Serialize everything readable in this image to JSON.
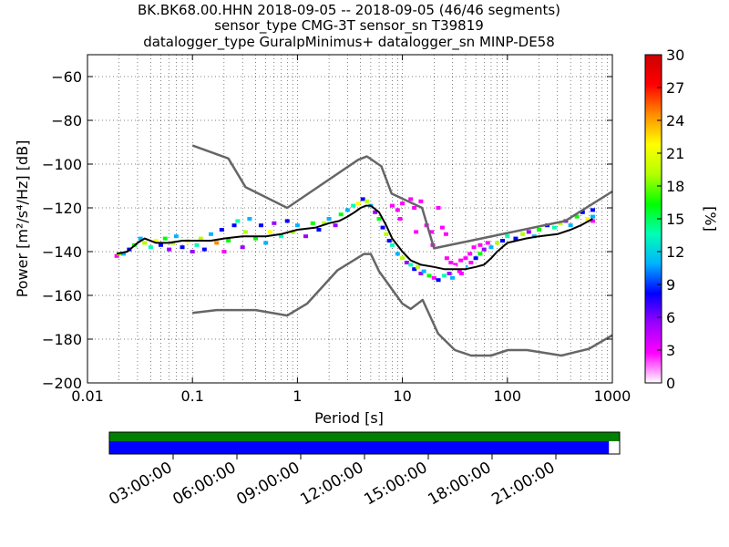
{
  "title_lines": [
    "BK.BK68.00.HHN   2018-09-05 -- 2018-09-05  (46/46 segments)",
    "sensor_type CMG-3T sensor_sn T39819",
    "datalogger_type GuralpMinimus+ datalogger_sn MINP-DE58"
  ],
  "chart_data": {
    "type": "heatmap",
    "subtype": "probabilistic power spectral density",
    "title": "BK.BK68.00.HHN   2018-09-05 -- 2018-09-05  (46/46 segments)",
    "xlabel": "Period [s]",
    "ylabel": "Power [m²/s⁴/Hz] [dB]",
    "x_scale": "log",
    "xlim": [
      0.01,
      1000
    ],
    "ylim": [
      -200,
      -50
    ],
    "x_ticks": [
      0.01,
      0.1,
      1,
      10,
      100,
      1000
    ],
    "x_tick_labels": [
      "0.01",
      "0.1",
      "1",
      "10",
      "100",
      "1000"
    ],
    "y_ticks": [
      -60,
      -80,
      -100,
      -120,
      -140,
      -160,
      -180,
      -200
    ],
    "y_tick_labels": [
      "−60",
      "−80",
      "−100",
      "−120",
      "−140",
      "−160",
      "−180",
      "−200"
    ],
    "grid": true,
    "colorbar": {
      "label": "[%]",
      "range": [
        0,
        30
      ],
      "ticks": [
        0,
        3,
        6,
        9,
        12,
        15,
        18,
        21,
        24,
        27,
        30
      ],
      "colors": [
        "#ffffff",
        "#ff00ff",
        "#9b00ff",
        "#0000ff",
        "#00b4ff",
        "#00ffb4",
        "#00ff00",
        "#b4ff00",
        "#ffff00",
        "#ff8c00",
        "#ff0000",
        "#cc0000"
      ]
    },
    "mean_curve": {
      "x": [
        0.019,
        0.024,
        0.03,
        0.035,
        0.045,
        0.06,
        0.08,
        0.1,
        0.15,
        0.2,
        0.3,
        0.5,
        0.7,
        1.0,
        1.5,
        2.0,
        2.5,
        3.0,
        3.5,
        4.0,
        4.5,
        5.0,
        6.0,
        7.0,
        8.0,
        10,
        12,
        15,
        20,
        25,
        30,
        40,
        50,
        60,
        70,
        80,
        100,
        150,
        200,
        300,
        400,
        500,
        650
      ],
      "y": [
        -141,
        -140,
        -136,
        -134,
        -136,
        -136,
        -135,
        -135,
        -135,
        -134,
        -133,
        -133,
        -132,
        -130,
        -129,
        -127,
        -126,
        -124,
        -122,
        -120,
        -119,
        -119,
        -122,
        -128,
        -134,
        -140,
        -144,
        -146,
        -147,
        -148,
        -148,
        -148,
        -147,
        -146,
        -143,
        -140,
        -136,
        -134,
        -133,
        -132,
        -130,
        -128,
        -125
      ]
    },
    "noise_model_high": {
      "name": "",
      "x": [
        0.1,
        0.22,
        0.32,
        0.8,
        3.8,
        4.6,
        6.3,
        7.9,
        15.4,
        20,
        354.8,
        1000
      ],
      "y": [
        -91.5,
        -97.4,
        -110.5,
        -120,
        -98,
        -96.5,
        -101,
        -113.5,
        -120,
        -138.5,
        -126,
        -112.5
      ]
    },
    "noise_model_low": {
      "name": "",
      "x": [
        0.1,
        0.17,
        0.4,
        0.8,
        1.24,
        2.4,
        4.3,
        5.0,
        6.0,
        10.0,
        12.0,
        15.6,
        21.9,
        31.6,
        45,
        70,
        101,
        154,
        328,
        600,
        1000
      ],
      "y": [
        -168,
        -166.7,
        -166.7,
        -169.2,
        -163.7,
        -148.6,
        -141.1,
        -141.1,
        -149,
        -163.8,
        -166.2,
        -162.1,
        -177.5,
        -185,
        -187.5,
        -187.5,
        -185,
        -185,
        -187.5,
        -184.4,
        -178.2
      ]
    },
    "psd_cells": [
      [
        0.019,
        -142,
        4
      ],
      [
        0.02,
        -141,
        18
      ],
      [
        0.022,
        -141,
        12
      ],
      [
        0.025,
        -139,
        8
      ],
      [
        0.028,
        -137,
        15
      ],
      [
        0.032,
        -134,
        10
      ],
      [
        0.035,
        -136,
        20
      ],
      [
        0.04,
        -138,
        14
      ],
      [
        0.045,
        -135,
        22
      ],
      [
        0.05,
        -137,
        9
      ],
      [
        0.055,
        -134,
        16
      ],
      [
        0.06,
        -139,
        6
      ],
      [
        0.065,
        -136,
        18
      ],
      [
        0.07,
        -133,
        11
      ],
      [
        0.08,
        -138,
        7
      ],
      [
        0.09,
        -135,
        21
      ],
      [
        0.1,
        -140,
        5
      ],
      [
        0.11,
        -137,
        13
      ],
      [
        0.12,
        -134,
        19
      ],
      [
        0.13,
        -139,
        8
      ],
      [
        0.15,
        -132,
        12
      ],
      [
        0.17,
        -136,
        24
      ],
      [
        0.19,
        -130,
        9
      ],
      [
        0.2,
        -140,
        4
      ],
      [
        0.22,
        -135,
        17
      ],
      [
        0.25,
        -128,
        8
      ],
      [
        0.27,
        -126,
        13
      ],
      [
        0.3,
        -138,
        6
      ],
      [
        0.32,
        -131,
        20
      ],
      [
        0.35,
        -125,
        11
      ],
      [
        0.4,
        -134,
        16
      ],
      [
        0.45,
        -128,
        7
      ],
      [
        0.5,
        -136,
        10
      ],
      [
        0.55,
        -131,
        22
      ],
      [
        0.6,
        -127,
        5
      ],
      [
        0.7,
        -133,
        14
      ],
      [
        0.8,
        -126,
        8
      ],
      [
        0.9,
        -131,
        18
      ],
      [
        1.0,
        -128,
        12
      ],
      [
        1.2,
        -133,
        6
      ],
      [
        1.4,
        -127,
        16
      ],
      [
        1.6,
        -130,
        9
      ],
      [
        1.8,
        -127,
        20
      ],
      [
        2.0,
        -125,
        12
      ],
      [
        2.3,
        -128,
        6
      ],
      [
        2.6,
        -123,
        17
      ],
      [
        3.0,
        -121,
        10
      ],
      [
        3.4,
        -119,
        14
      ],
      [
        3.8,
        -118,
        22
      ],
      [
        4.2,
        -116,
        8
      ],
      [
        4.6,
        -117,
        18
      ],
      [
        5.0,
        -119,
        12
      ],
      [
        5.5,
        -122,
        6
      ],
      [
        6.0,
        -125,
        16
      ],
      [
        6.5,
        -129,
        9
      ],
      [
        7.0,
        -132,
        20
      ],
      [
        7.5,
        -135,
        7
      ],
      [
        8.0,
        -137,
        14
      ],
      [
        9.0,
        -141,
        10
      ],
      [
        10,
        -143,
        18
      ],
      [
        11,
        -145,
        6
      ],
      [
        12,
        -146,
        13
      ],
      [
        13,
        -148,
        9
      ],
      [
        14,
        -147,
        20
      ],
      [
        15,
        -150,
        5
      ],
      [
        16,
        -149,
        11
      ],
      [
        18,
        -151,
        16
      ],
      [
        20,
        -152,
        4
      ],
      [
        22,
        -153,
        8
      ],
      [
        25,
        -151,
        14
      ],
      [
        28,
        -150,
        6
      ],
      [
        30,
        -152,
        10
      ],
      [
        35,
        -149,
        4
      ],
      [
        40,
        -147,
        12
      ],
      [
        45,
        -145,
        3
      ],
      [
        50,
        -143,
        9
      ],
      [
        55,
        -141,
        15
      ],
      [
        60,
        -139,
        5
      ],
      [
        70,
        -138,
        11
      ],
      [
        80,
        -136,
        18
      ],
      [
        90,
        -135,
        7
      ],
      [
        100,
        -133,
        14
      ],
      [
        120,
        -134,
        9
      ],
      [
        140,
        -132,
        20
      ],
      [
        160,
        -131,
        6
      ],
      [
        180,
        -133,
        12
      ],
      [
        200,
        -130,
        16
      ],
      [
        240,
        -128,
        8
      ],
      [
        280,
        -129,
        13
      ],
      [
        320,
        -127,
        19
      ],
      [
        360,
        -126,
        5
      ],
      [
        400,
        -128,
        11
      ],
      [
        460,
        -124,
        16
      ],
      [
        520,
        -122,
        9
      ],
      [
        580,
        -125,
        21
      ],
      [
        650,
        -121,
        7
      ],
      [
        650,
        -124,
        12
      ],
      [
        650,
        -126,
        4
      ],
      [
        8,
        -119,
        2
      ],
      [
        9,
        -121,
        2
      ],
      [
        10,
        -118,
        3
      ],
      [
        11,
        -123,
        1
      ],
      [
        12,
        -116,
        2
      ],
      [
        13,
        -120,
        3
      ],
      [
        14,
        -125,
        1
      ],
      [
        15,
        -117,
        2
      ],
      [
        16,
        -122,
        1
      ],
      [
        17,
        -128,
        2
      ],
      [
        18,
        -115,
        1
      ],
      [
        19,
        -131,
        2
      ],
      [
        20,
        -126,
        1
      ],
      [
        21,
        -134,
        1
      ],
      [
        22,
        -120,
        2
      ],
      [
        23,
        -137,
        1
      ],
      [
        24,
        -129,
        2
      ],
      [
        25,
        -140,
        1
      ],
      [
        26,
        -132,
        2
      ],
      [
        27,
        -143,
        1
      ],
      [
        28,
        -135,
        1
      ],
      [
        29,
        -145,
        2
      ],
      [
        30,
        -138,
        1
      ],
      [
        32,
        -146,
        2
      ],
      [
        34,
        -141,
        1
      ],
      [
        36,
        -144,
        2
      ],
      [
        38,
        -147,
        1
      ],
      [
        40,
        -143,
        2
      ],
      [
        42,
        -139,
        1
      ],
      [
        44,
        -141,
        2
      ],
      [
        46,
        -136,
        1
      ],
      [
        48,
        -138,
        2
      ],
      [
        50,
        -135,
        1
      ],
      [
        55,
        -137,
        2
      ],
      [
        60,
        -134,
        1
      ],
      [
        65,
        -136,
        2
      ],
      [
        9.5,
        -125,
        2
      ],
      [
        11.5,
        -128,
        1
      ],
      [
        13.5,
        -131,
        2
      ],
      [
        16.5,
        -134,
        1
      ],
      [
        19.5,
        -137,
        2
      ],
      [
        22.5,
        -140,
        1
      ],
      [
        26.5,
        -143,
        2
      ],
      [
        31,
        -147,
        1
      ],
      [
        36.5,
        -150,
        2
      ],
      [
        43,
        -148,
        1
      ]
    ]
  },
  "time_axis": {
    "tick_labels": [
      "03:00:00",
      "06:00:00",
      "09:00:00",
      "12:00:00",
      "15:00:00",
      "18:00:00",
      "21:00:00"
    ],
    "tick_hours": [
      3,
      6,
      9,
      12,
      15,
      18,
      21
    ],
    "span_hours": 24,
    "coverage_fraction": 0.979,
    "data_color": "#008000",
    "psd_color": "#0000ff"
  }
}
